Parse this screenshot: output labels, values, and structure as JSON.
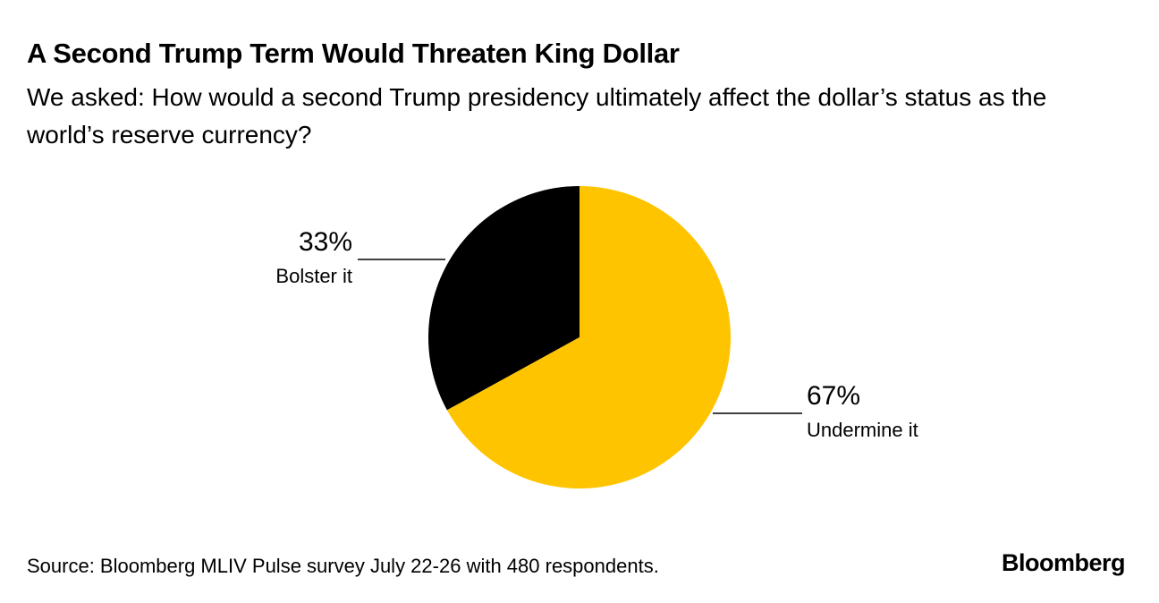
{
  "header": {
    "title": "A Second Trump Term Would Threaten King Dollar",
    "subtitle": "We asked: How would a second Trump presidency ultimately affect the dollar’s status as the world’s reserve currency?"
  },
  "chart_data": {
    "type": "pie",
    "title": "A Second Trump Term Would Threaten King Dollar",
    "categories": [
      "Bolster it",
      "Undermine it"
    ],
    "values": [
      33,
      67
    ],
    "value_labels": [
      "33%",
      "67%"
    ],
    "colors": [
      "#000000",
      "#FFC400"
    ],
    "start": "12 o'clock, first slice counterclockwise"
  },
  "footer": {
    "source": "Source: Bloomberg MLIV Pulse survey July 22-26 with 480 respondents.",
    "logo": "Bloomberg"
  }
}
